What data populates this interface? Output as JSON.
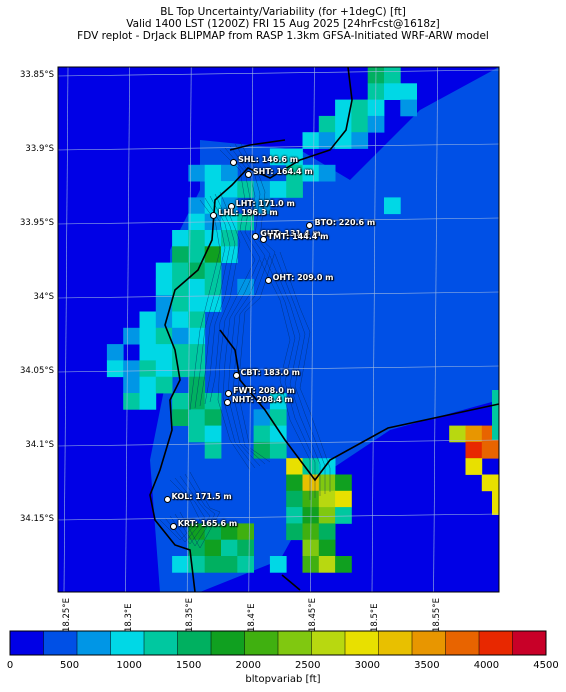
{
  "header": {
    "line1": "BL Top Uncertainty/Variability (for +1degC) [ft]",
    "line2": "Valid 1400 LST (1200Z) FRI 15 Aug 2025 [24hrFcst@1618z]",
    "line3": "FDV replot - DrJack BLIPMAP from RASP 1.3km GFSA-Initiated WRF-ARW model"
  },
  "lat_labels": [
    {
      "text": "33.85°S",
      "lat": -33.85
    },
    {
      "text": "33.9°S",
      "lat": -33.9
    },
    {
      "text": "33.95°S",
      "lat": -33.95
    },
    {
      "text": "34°S",
      "lat": -34.0
    },
    {
      "text": "34.05°S",
      "lat": -34.05
    },
    {
      "text": "34.1°S",
      "lat": -34.1
    },
    {
      "text": "34.15°S",
      "lat": -34.15
    }
  ],
  "lon_labels": [
    {
      "text": "18.25°E",
      "lon": 18.25
    },
    {
      "text": "18.3°E",
      "lon": 18.3
    },
    {
      "text": "18.35°E",
      "lon": 18.35
    },
    {
      "text": "18.4°E",
      "lon": 18.4
    },
    {
      "text": "18.45°E",
      "lon": 18.45
    },
    {
      "text": "18.5°E",
      "lon": 18.5
    },
    {
      "text": "18.55°E",
      "lon": 18.55
    }
  ],
  "sites": [
    {
      "label": "SHL: 146.6 m",
      "lon": 18.384,
      "lat": -33.908
    },
    {
      "label": "SHT: 164.4 m",
      "lon": 18.396,
      "lat": -33.916
    },
    {
      "label": "LHT: 171.0 m",
      "lon": 18.382,
      "lat": -33.938
    },
    {
      "label": "LHL: 196.3 m",
      "lon": 18.368,
      "lat": -33.944
    },
    {
      "label": "BTO: 220.6 m",
      "lon": 18.446,
      "lat": -33.951
    },
    {
      "label": "GUT: 131.4 m",
      "lon": 18.402,
      "lat": -33.958
    },
    {
      "label": "TMT: 144.4 m",
      "lon": 18.408,
      "lat": -33.96
    },
    {
      "label": "OHT: 209.0 m",
      "lon": 18.412,
      "lat": -33.988
    },
    {
      "label": "CBT: 183.0 m",
      "lon": 18.386,
      "lat": -34.052
    },
    {
      "label": "FWT: 208.0 m",
      "lon": 18.38,
      "lat": -34.064
    },
    {
      "label": "NHT: 208.4 m",
      "lon": 18.379,
      "lat": -34.07
    },
    {
      "label": "KOL: 171.5 m",
      "lon": 18.33,
      "lat": -34.136
    },
    {
      "label": "KRT: 165.6 m",
      "lon": 18.335,
      "lat": -34.154
    }
  ],
  "colorbar": {
    "title": "bltopvariab [ft]",
    "ticks": [
      "0",
      "500",
      "1000",
      "1500",
      "2000",
      "2500",
      "3000",
      "3500",
      "4000",
      "4500"
    ],
    "colors": [
      "#0000e6",
      "#0050e6",
      "#0096e6",
      "#00d8e6",
      "#00c8a0",
      "#00b060",
      "#10a020",
      "#40b010",
      "#80c810",
      "#b8d810",
      "#e8e000",
      "#e8c000",
      "#e89600",
      "#e86400",
      "#e82800",
      "#c80028"
    ]
  },
  "map": {
    "land_bg": "#0046dc",
    "ocean_bg": "#0000e6"
  }
}
